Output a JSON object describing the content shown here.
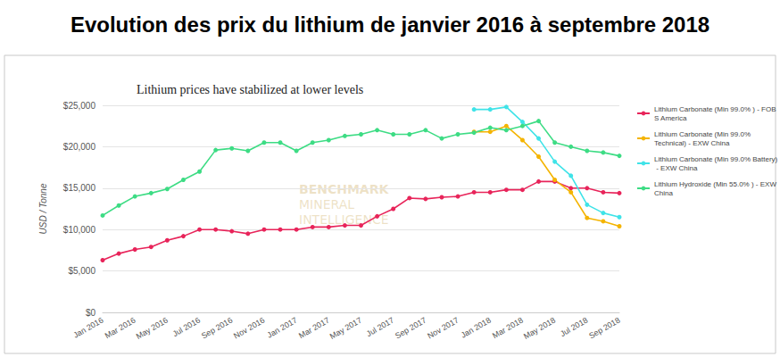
{
  "chart_data": {
    "type": "line",
    "title": "Evolution des prix du lithium de janvier 2016 à septembre 2018",
    "subtitle": "Lithium prices have stabilized at lower levels",
    "y_label": "USD / Tonne",
    "annotations": [
      "BENCHMARK",
      "MINERAL",
      "INTELLIGENCE"
    ],
    "categories": [
      "Jan 2016",
      null,
      "Mar 2016",
      null,
      "May 2016",
      null,
      "Jul 2016",
      null,
      "Sep 2016",
      null,
      "Nov 2016",
      null,
      "Jan 2017",
      null,
      "Mar 2017",
      null,
      "May 2017",
      null,
      "Jul 2017",
      null,
      "Sep 2017",
      null,
      "Nov 2017",
      null,
      "Jan 2018",
      null,
      "Mar 2018",
      null,
      "May 2018",
      null,
      "Jul 2018",
      null,
      "Sep 2018"
    ],
    "series": [
      {
        "name": "Lithium Carbonate (Min 99.0% ) - FOB S America",
        "color": "#e8245a",
        "values": [
          6300,
          7100,
          7600,
          7900,
          8700,
          9200,
          10000,
          10000,
          9800,
          9500,
          10000,
          10000,
          10000,
          10300,
          10300,
          10500,
          10500,
          11600,
          12500,
          13800,
          13700,
          13900,
          14000,
          14500,
          14500,
          14800,
          14800,
          15800,
          15800,
          15000,
          15000,
          14500,
          14400
        ]
      },
      {
        "name": "Lithium Carbonate (Min 99.0% Technical) - EXW China",
        "color": "#f4b400",
        "values": [
          null,
          null,
          null,
          null,
          null,
          null,
          null,
          null,
          null,
          null,
          null,
          null,
          null,
          null,
          null,
          null,
          null,
          null,
          null,
          null,
          null,
          null,
          null,
          21800,
          21800,
          22500,
          20800,
          18800,
          16000,
          14500,
          11400,
          11000,
          10400
        ]
      },
      {
        "name": "Lithium Carbonate (Min 99.0% Battery) - EXW China",
        "color": "#3fe3e8",
        "values": [
          null,
          null,
          null,
          null,
          null,
          null,
          null,
          null,
          null,
          null,
          null,
          null,
          null,
          null,
          null,
          null,
          null,
          null,
          null,
          null,
          null,
          null,
          null,
          24500,
          24500,
          24800,
          23000,
          21000,
          18200,
          16500,
          13000,
          12000,
          11500
        ]
      },
      {
        "name": "Lithium Hydroxide (Min 55.0% ) - EXW China",
        "color": "#3ddc84",
        "values": [
          11700,
          12900,
          14000,
          14400,
          14900,
          16000,
          17000,
          19600,
          19800,
          19500,
          20500,
          20500,
          19500,
          20500,
          20800,
          21300,
          21500,
          22000,
          21500,
          21500,
          22000,
          21000,
          21500,
          21700,
          22300,
          22000,
          22500,
          23100,
          20500,
          20000,
          19500,
          19300,
          18900
        ]
      }
    ],
    "ylim": [
      0,
      25000
    ],
    "yticks": [
      {
        "value": 0,
        "label": "$0"
      },
      {
        "value": 5000,
        "label": "$5,000"
      },
      {
        "value": 10000,
        "label": "$10,000"
      },
      {
        "value": 15000,
        "label": "$15,000"
      },
      {
        "value": 20000,
        "label": "$20,000"
      },
      {
        "value": 25000,
        "label": "$25,000"
      }
    ],
    "grid": true,
    "legend": "right",
    "marker": "circle"
  }
}
